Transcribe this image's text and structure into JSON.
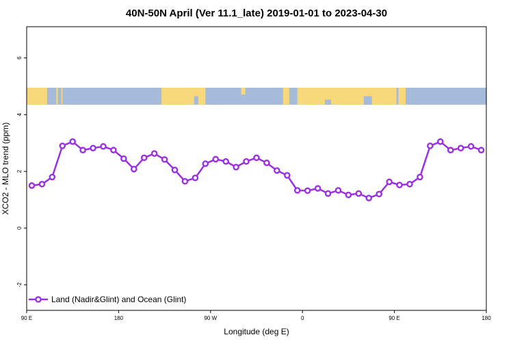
{
  "chart_data": {
    "type": "line",
    "title": "40N-50N April (Ver 11.1_late)   2019-01-01 to 2023-04-30",
    "xlabel": "Longitude (deg E)",
    "ylabel": "XCO2 - MLO trend (ppm)",
    "xlim": [
      90,
      540
    ],
    "ylim": [
      -2.9,
      7.1
    ],
    "xticks": [
      {
        "value": 90,
        "label": "90 E"
      },
      {
        "value": 180,
        "label": "180"
      },
      {
        "value": 270,
        "label": "90 W"
      },
      {
        "value": 360,
        "label": "0"
      },
      {
        "value": 450,
        "label": "90 E"
      },
      {
        "value": 540,
        "label": "180"
      }
    ],
    "yticks": [
      {
        "value": -2,
        "label": "-2"
      },
      {
        "value": 0,
        "label": "0"
      },
      {
        "value": 2,
        "label": "2"
      },
      {
        "value": 4,
        "label": "4"
      },
      {
        "value": 6,
        "label": "6"
      }
    ],
    "map_band": {
      "ymin": 4.35,
      "ymax": 4.95,
      "land_color": "#f7d97b",
      "ocean_color": "#a5bbd9"
    },
    "legend": {
      "position": "bottom-left"
    },
    "series": [
      {
        "name": "Land (Nadir&Glint) and Ocean (Glint)",
        "color": "#9b30e0",
        "x": [
          95,
          105,
          115,
          125,
          135,
          145,
          155,
          165,
          175,
          185,
          195,
          205,
          215,
          225,
          235,
          245,
          255,
          265,
          275,
          285,
          295,
          305,
          315,
          325,
          335,
          345,
          355,
          365,
          375,
          385,
          395,
          405,
          415,
          425,
          435,
          445,
          455,
          465,
          475,
          485,
          495,
          505,
          515,
          525,
          535
        ],
        "y": [
          1.5,
          1.55,
          1.8,
          2.9,
          3.05,
          2.75,
          2.82,
          2.88,
          2.75,
          2.45,
          2.08,
          2.48,
          2.63,
          2.42,
          2.05,
          1.65,
          1.77,
          2.27,
          2.43,
          2.35,
          2.15,
          2.35,
          2.48,
          2.3,
          2.03,
          1.86,
          1.33,
          1.32,
          1.4,
          1.22,
          1.33,
          1.17,
          1.22,
          1.06,
          1.2,
          1.63,
          1.52,
          1.55,
          1.8,
          2.9,
          3.05,
          2.75,
          2.82,
          2.88,
          2.75
        ]
      }
    ]
  }
}
